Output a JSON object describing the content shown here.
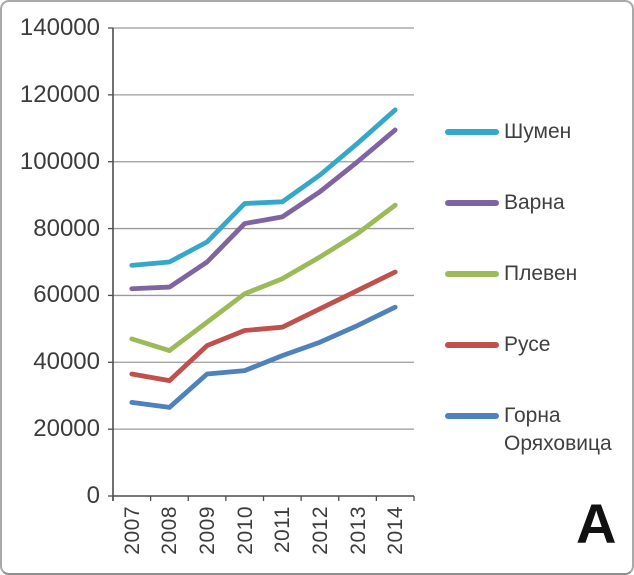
{
  "figure_label": "А",
  "chart_data": {
    "type": "line",
    "x_categories": [
      "2007",
      "2008",
      "2009",
      "2010",
      "2011",
      "2012",
      "2013",
      "2014"
    ],
    "series": [
      {
        "name": "Шумен",
        "color": "#35a8c9",
        "values": [
          69000,
          70000,
          76000,
          87500,
          88000,
          96000,
          105500,
          115500
        ]
      },
      {
        "name": "Варна",
        "color": "#8064a2",
        "values": [
          62000,
          62500,
          70000,
          81500,
          83500,
          91000,
          100000,
          109500
        ]
      },
      {
        "name": "Плевен",
        "color": "#9bbb59",
        "values": [
          47000,
          43500,
          52000,
          60500,
          65000,
          71500,
          78500,
          87000
        ]
      },
      {
        "name": "Русе",
        "color": "#c0504d",
        "values": [
          36500,
          34500,
          45000,
          49500,
          50500,
          56000,
          61500,
          67000
        ]
      },
      {
        "name": "Горна Оряховица",
        "color": "#4f81bd",
        "values": [
          28000,
          26500,
          36500,
          37500,
          42000,
          46000,
          51000,
          56500
        ]
      }
    ],
    "title": "",
    "xlabel": "",
    "ylabel": "",
    "ylim": [
      0,
      140000
    ],
    "ytick_step": 20000,
    "yticks": [
      0,
      20000,
      40000,
      60000,
      80000,
      100000,
      120000,
      140000
    ],
    "grid": true,
    "legend_position": "right",
    "axis_color": "#4d4d4d",
    "gridline_color": "#9b9b9b",
    "label_color": "#3c3c3c"
  }
}
